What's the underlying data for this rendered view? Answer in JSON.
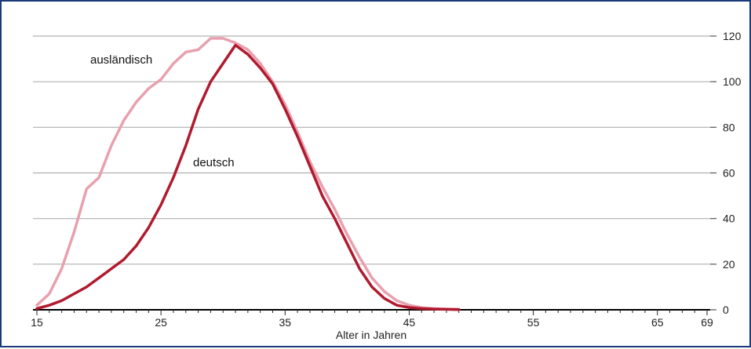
{
  "chart_data": {
    "type": "line",
    "xlabel": "Alter in Jahren",
    "ylabel": "",
    "title": "",
    "xlim": [
      15,
      69
    ],
    "ylim": [
      0,
      120
    ],
    "x_ticks_labeled": [
      15,
      25,
      35,
      45,
      55,
      65,
      69
    ],
    "y_ticks_labeled": [
      0,
      20,
      40,
      60,
      80,
      100,
      120
    ],
    "grid": "horizontal",
    "colors": {
      "auslaendisch": "#e8a0ae",
      "deutsch": "#b01a2e",
      "grid": "#b0b0b0",
      "axis": "#000000",
      "frame": "#1a3a7a"
    },
    "series": [
      {
        "name": "ausländisch",
        "x": [
          15,
          16,
          17,
          18,
          19,
          20,
          21,
          22,
          23,
          24,
          25,
          26,
          27,
          28,
          29,
          30,
          31,
          32,
          33,
          34,
          35,
          36,
          37,
          38,
          39,
          40,
          41,
          42,
          43,
          44,
          45,
          46,
          47,
          48,
          49
        ],
        "values": [
          2,
          7,
          18,
          34,
          53,
          58,
          72,
          83,
          91,
          97,
          101,
          108,
          113,
          114,
          119,
          119,
          117,
          114,
          108,
          100,
          90,
          78,
          65,
          54,
          44,
          33,
          23,
          14,
          8,
          4,
          2,
          1,
          0.5,
          0.3,
          0.2
        ]
      },
      {
        "name": "deutsch",
        "x": [
          15,
          16,
          17,
          18,
          19,
          20,
          21,
          22,
          23,
          24,
          25,
          26,
          27,
          28,
          29,
          30,
          31,
          32,
          33,
          34,
          35,
          36,
          37,
          38,
          39,
          40,
          41,
          42,
          43,
          44,
          45,
          46,
          47,
          48,
          49
        ],
        "values": [
          0.5,
          2,
          4,
          7,
          10,
          14,
          18,
          22,
          28,
          36,
          46,
          58,
          72,
          88,
          100,
          108,
          116,
          112,
          106,
          99,
          88,
          76,
          63,
          50,
          40,
          29,
          18,
          10,
          5,
          2,
          1,
          0.5,
          0.3,
          0.2,
          0.1
        ]
      }
    ],
    "annotations": [
      {
        "text": "ausländisch",
        "series": "ausländisch"
      },
      {
        "text": "deutsch",
        "series": "deutsch"
      }
    ]
  }
}
